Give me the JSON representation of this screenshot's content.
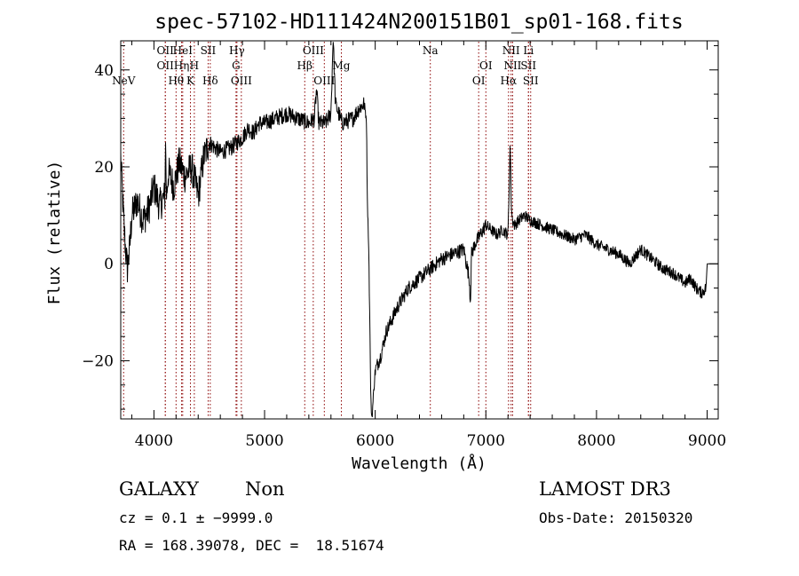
{
  "chart_data": {
    "type": "line",
    "title": "spec-57102-HD111424N200151B01_sp01-168.fits",
    "xlabel": "Wavelength (Å)",
    "ylabel": "Flux (relative)",
    "xlim": [
      3700,
      9100
    ],
    "ylim": [
      -32,
      46
    ],
    "xticks": [
      4000,
      5000,
      6000,
      7000,
      8000,
      9000
    ],
    "xtick_labels": [
      "4000",
      "5000",
      "6000",
      "7000",
      "8000",
      "9000"
    ],
    "yticks": [
      -20,
      0,
      20,
      40
    ],
    "ytick_labels": [
      "−20",
      "0",
      "20",
      "40"
    ],
    "grid": false,
    "line_color": "#000000",
    "marker_color": "#8b0000",
    "series": [
      {
        "name": "spectrum",
        "x": [
          3700,
          3720,
          3740,
          3760,
          3780,
          3800,
          3850,
          3900,
          3950,
          4000,
          4050,
          4100,
          4105,
          4110,
          4115,
          4130,
          4180,
          4230,
          4280,
          4340,
          4400,
          4450,
          4500,
          4600,
          4700,
          4800,
          4850,
          4900,
          4950,
          5000,
          5100,
          5200,
          5300,
          5400,
          5450,
          5470,
          5490,
          5550,
          5600,
          5620,
          5640,
          5700,
          5800,
          5850,
          5900,
          5920,
          5930,
          5940,
          5950,
          5960,
          5970,
          5990,
          6000,
          6050,
          6100,
          6200,
          6300,
          6400,
          6500,
          6600,
          6700,
          6800,
          6850,
          6860,
          6870,
          6900,
          6950,
          7000,
          7100,
          7150,
          7200,
          7220,
          7230,
          7240,
          7260,
          7300,
          7350,
          7400,
          7500,
          7600,
          7700,
          7800,
          7900,
          8000,
          8100,
          8200,
          8300,
          8400,
          8500,
          8600,
          8700,
          8800,
          8850,
          8900,
          8950,
          8990,
          9000,
          9050
        ],
        "y": [
          22,
          12,
          4,
          -1,
          3,
          10,
          13,
          9,
          11,
          16,
          12,
          14,
          27,
          17,
          14,
          19,
          16,
          21,
          18,
          20,
          14,
          22,
          25,
          23,
          24,
          26,
          28,
          27,
          29,
          29,
          30,
          31,
          30,
          29,
          30,
          36,
          29,
          29,
          31,
          47,
          33,
          29,
          30,
          32,
          33,
          30,
          12,
          5,
          -10,
          -28,
          -32,
          -25,
          -22,
          -19,
          -14,
          -9,
          -5,
          -3,
          -1,
          1,
          2,
          3,
          -3,
          -8,
          2,
          4,
          6,
          8,
          6,
          7,
          6,
          25,
          12,
          9,
          8,
          9,
          10,
          9,
          8,
          7,
          6,
          5,
          6,
          4,
          3,
          2,
          0,
          3,
          1,
          -1,
          -2,
          -4,
          -3,
          -5,
          -6,
          -5,
          0,
          0
        ]
      }
    ],
    "line_markers": [
      {
        "name": "NeV",
        "wavelength": 3726,
        "row": 3
      },
      {
        "name": "OII",
        "wavelength": 4103,
        "row": 0
      },
      {
        "name": "OII",
        "wavelength": 4103,
        "row": 1
      },
      {
        "name": "Hθ",
        "wavelength": 4200,
        "row": 3
      },
      {
        "name": "HeI",
        "wavelength": 4260,
        "row": 0
      },
      {
        "name": "Hη",
        "wavelength": 4250,
        "row": 1
      },
      {
        "name": "K",
        "wavelength": 4330,
        "row": 3
      },
      {
        "name": "H",
        "wavelength": 4365,
        "row": 2
      },
      {
        "name": "SII",
        "wavelength": 4490,
        "row": 0
      },
      {
        "name": "Hδ",
        "wavelength": 4509,
        "row": 3
      },
      {
        "name": "Hγ",
        "wavelength": 4750,
        "row": 0
      },
      {
        "name": "G",
        "wavelength": 4742,
        "row": 2
      },
      {
        "name": "OIII",
        "wavelength": 4790,
        "row": 3
      },
      {
        "name": "OIII",
        "wavelength": 5440,
        "row": 0
      },
      {
        "name": "Hβ",
        "wavelength": 5363,
        "row": 2
      },
      {
        "name": "OIII",
        "wavelength": 5540,
        "row": 3
      },
      {
        "name": "Mg",
        "wavelength": 5694,
        "row": 2
      },
      {
        "name": "Na",
        "wavelength": 6498,
        "row": 0
      },
      {
        "name": "OI",
        "wavelength": 7000,
        "row": 1
      },
      {
        "name": "OI",
        "wavelength": 6935,
        "row": 3
      },
      {
        "name": "NII",
        "wavelength": 7228,
        "row": 0
      },
      {
        "name": "NII",
        "wavelength": 7242,
        "row": 1
      },
      {
        "name": "Hα",
        "wavelength": 7205,
        "row": 3
      },
      {
        "name": "Li",
        "wavelength": 7385,
        "row": 0
      },
      {
        "name": "SII",
        "wavelength": 7385,
        "row": 1
      },
      {
        "name": "SII",
        "wavelength": 7405,
        "row": 3
      }
    ]
  },
  "info": {
    "object_class": "GALAXY",
    "object_subclass": "Non",
    "survey": "LAMOST DR3",
    "cz_line": "cz = 0.1 ± −9999.0",
    "obs_date": "Obs-Date: 20150320",
    "radec_line": "RA = 168.39078, DEC =  18.51674"
  }
}
